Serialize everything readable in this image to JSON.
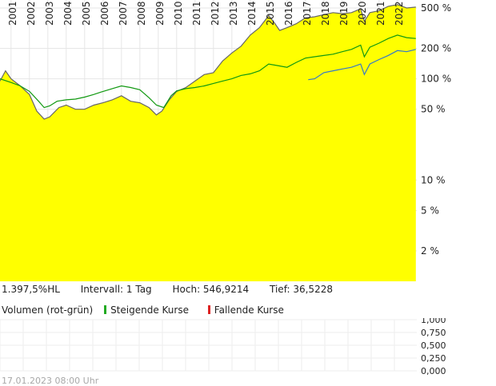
{
  "stats": {
    "performance": "1.397,5%HL",
    "interval": "Intervall: 1 Tag",
    "high": "Hoch: 546,9214",
    "low": "Tief: 36,5228"
  },
  "legend": {
    "volume_label": "Volumen (rot-grün)",
    "rising_label": "Steigende Kurse",
    "falling_label": "Fallende Kurse",
    "rising_color": "#22aa22",
    "falling_color": "#dd2222"
  },
  "footer_timestamp": "17.01.2023 08:00 Uhr",
  "colors": {
    "area_fill": "#ffff00",
    "main_line": "#666666",
    "green_line": "#119911",
    "blue_line": "#3377cc",
    "grid": "#e6e6e6"
  },
  "chart_data": [
    {
      "type": "line",
      "scale": "log",
      "x_range": [
        2000.4,
        2023.05
      ],
      "y_range": [
        1,
        600
      ],
      "x_ticks": [
        "2001",
        "2002",
        "2003",
        "2004",
        "2005",
        "2006",
        "2007",
        "2008",
        "2009",
        "2010",
        "2011",
        "2012",
        "2013",
        "2014",
        "2015",
        "2016",
        "2017",
        "2018",
        "2019",
        "2020",
        "2021",
        "2022"
      ],
      "y_ticks": [
        {
          "value": 500,
          "label": "500 %"
        },
        {
          "value": 200,
          "label": "200 %"
        },
        {
          "value": 100,
          "label": "100 %"
        },
        {
          "value": 50,
          "label": "50 %"
        },
        {
          "value": 10,
          "label": "10 %"
        },
        {
          "value": 5,
          "label": "5 %"
        },
        {
          "value": 2,
          "label": "2 %"
        }
      ],
      "series": [
        {
          "role": "main",
          "filled": true,
          "x": [
            2000.4,
            2000.7,
            2001.0,
            2001.5,
            2002.0,
            2002.4,
            2002.8,
            2003.1,
            2003.6,
            2004.0,
            2004.5,
            2005.0,
            2005.5,
            2006.0,
            2006.5,
            2007.0,
            2007.5,
            2008.0,
            2008.5,
            2008.9,
            2009.2,
            2009.6,
            2010.0,
            2010.5,
            2011.0,
            2011.5,
            2012.0,
            2012.5,
            2013.0,
            2013.5,
            2014.0,
            2014.5,
            2015.0,
            2015.3,
            2015.6,
            2016.0,
            2016.5,
            2017.0,
            2017.5,
            2018.0,
            2018.5,
            2019.0,
            2019.5,
            2020.0,
            2020.2,
            2020.5,
            2021.0,
            2021.5,
            2022.0,
            2022.5,
            2023.0
          ],
          "y": [
            95,
            120,
            100,
            85,
            70,
            48,
            40,
            42,
            52,
            55,
            50,
            50,
            55,
            58,
            62,
            68,
            60,
            58,
            52,
            44,
            48,
            62,
            75,
            82,
            95,
            110,
            115,
            150,
            180,
            210,
            270,
            320,
            420,
            360,
            300,
            320,
            350,
            400,
            410,
            430,
            450,
            440,
            450,
            490,
            370,
            450,
            470,
            520,
            540,
            500,
            510
          ]
        },
        {
          "role": "green",
          "filled": false,
          "x": [
            2000.4,
            2001.0,
            2001.5,
            2002.0,
            2002.5,
            2002.8,
            2003.1,
            2003.5,
            2004.0,
            2004.5,
            2005.0,
            2005.5,
            2006.0,
            2006.5,
            2007.0,
            2007.5,
            2008.0,
            2008.5,
            2008.9,
            2009.3,
            2009.7,
            2010.0,
            2010.5,
            2011.0,
            2011.5,
            2012.0,
            2012.5,
            2013.0,
            2013.5,
            2014.0,
            2014.5,
            2015.0,
            2015.5,
            2016.0,
            2016.5,
            2017.0,
            2017.5,
            2018.0,
            2018.5,
            2019.0,
            2019.5,
            2020.0,
            2020.2,
            2020.5,
            2021.0,
            2021.5,
            2022.0,
            2022.5,
            2023.0
          ],
          "y": [
            100,
            92,
            85,
            75,
            60,
            52,
            54,
            60,
            62,
            63,
            66,
            70,
            75,
            80,
            85,
            82,
            78,
            65,
            55,
            52,
            68,
            76,
            80,
            82,
            85,
            90,
            95,
            100,
            108,
            112,
            120,
            140,
            135,
            130,
            145,
            160,
            165,
            170,
            175,
            185,
            195,
            215,
            165,
            205,
            225,
            250,
            270,
            255,
            250
          ]
        },
        {
          "role": "blue",
          "filled": false,
          "x": [
            2017.15,
            2017.5,
            2018.0,
            2018.5,
            2019.0,
            2019.5,
            2020.0,
            2020.2,
            2020.5,
            2021.0,
            2021.5,
            2022.0,
            2022.5,
            2023.0
          ],
          "y": [
            98,
            100,
            115,
            120,
            125,
            130,
            140,
            110,
            140,
            155,
            170,
            190,
            185,
            195
          ]
        }
      ]
    },
    {
      "type": "bar",
      "y_range": [
        0,
        1
      ],
      "y_ticks": [
        "1,000",
        "0,750",
        "0,500",
        "0,250",
        "0,000"
      ],
      "values": []
    }
  ]
}
